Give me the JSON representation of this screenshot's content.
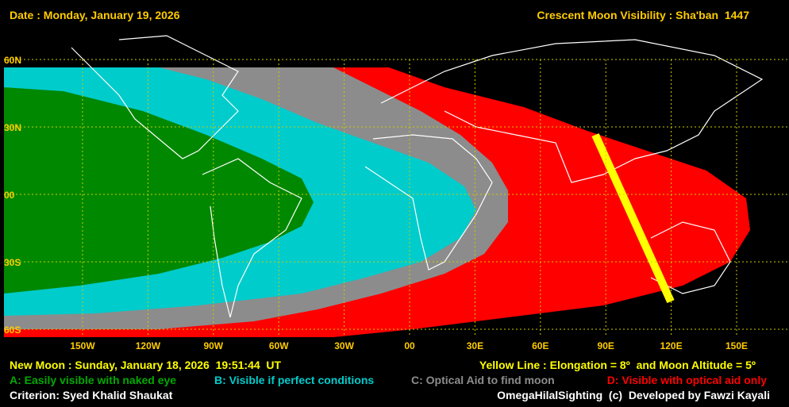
{
  "header": {
    "date": "Date : Monday, January 19, 2026",
    "title": "Crescent Moon Visibility : Sha'ban  1447"
  },
  "map": {
    "latitudes": [
      "60N",
      "30N",
      "00",
      "30S",
      "60S"
    ],
    "longitudes": [
      "150W",
      "120W",
      "90W",
      "60W",
      "30W",
      "00",
      "30E",
      "60E",
      "90E",
      "120E",
      "150E"
    ]
  },
  "footer": {
    "new_moon": "New Moon : Sunday, January 18, 2026  19:51:44  UT",
    "yellow_line": "Yellow Line : Elongation = 8º  and Moon Altitude = 5º",
    "legend": [
      "A: Easily visible with naked eye",
      "B: Visible if perfect conditions",
      "C: Optical Aid to find moon",
      "D: Visible with optical aid only"
    ],
    "criterion": "Criterion: Syed Khalid Shaukat",
    "credit": "OmegaHilalSighting  (c)  Developed by Fawzi Kayali"
  }
}
